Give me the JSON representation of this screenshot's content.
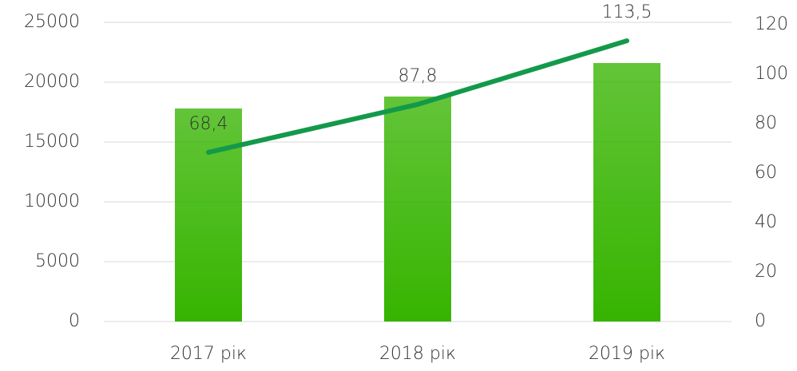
{
  "chart_data": {
    "type": "bar-line",
    "categories": [
      "2017 рік",
      "2018 рік",
      "2019 рік"
    ],
    "series": [
      {
        "type": "bar",
        "color": "#36b400",
        "values": [
          17800,
          18800,
          21600
        ]
      },
      {
        "type": "line",
        "axis": "y2",
        "color": "#13994a",
        "values": [
          68.4,
          87.8,
          113.5
        ],
        "value_labels": [
          "68,4",
          "87,8",
          "113,5"
        ]
      }
    ],
    "ylim": [
      0,
      25000
    ],
    "yticks": [
      0,
      5000,
      10000,
      15000,
      20000,
      25000
    ],
    "y2lim": [
      0,
      120
    ],
    "y2ticks": [
      0,
      20,
      40,
      60,
      80,
      100,
      120
    ],
    "grid": true
  }
}
